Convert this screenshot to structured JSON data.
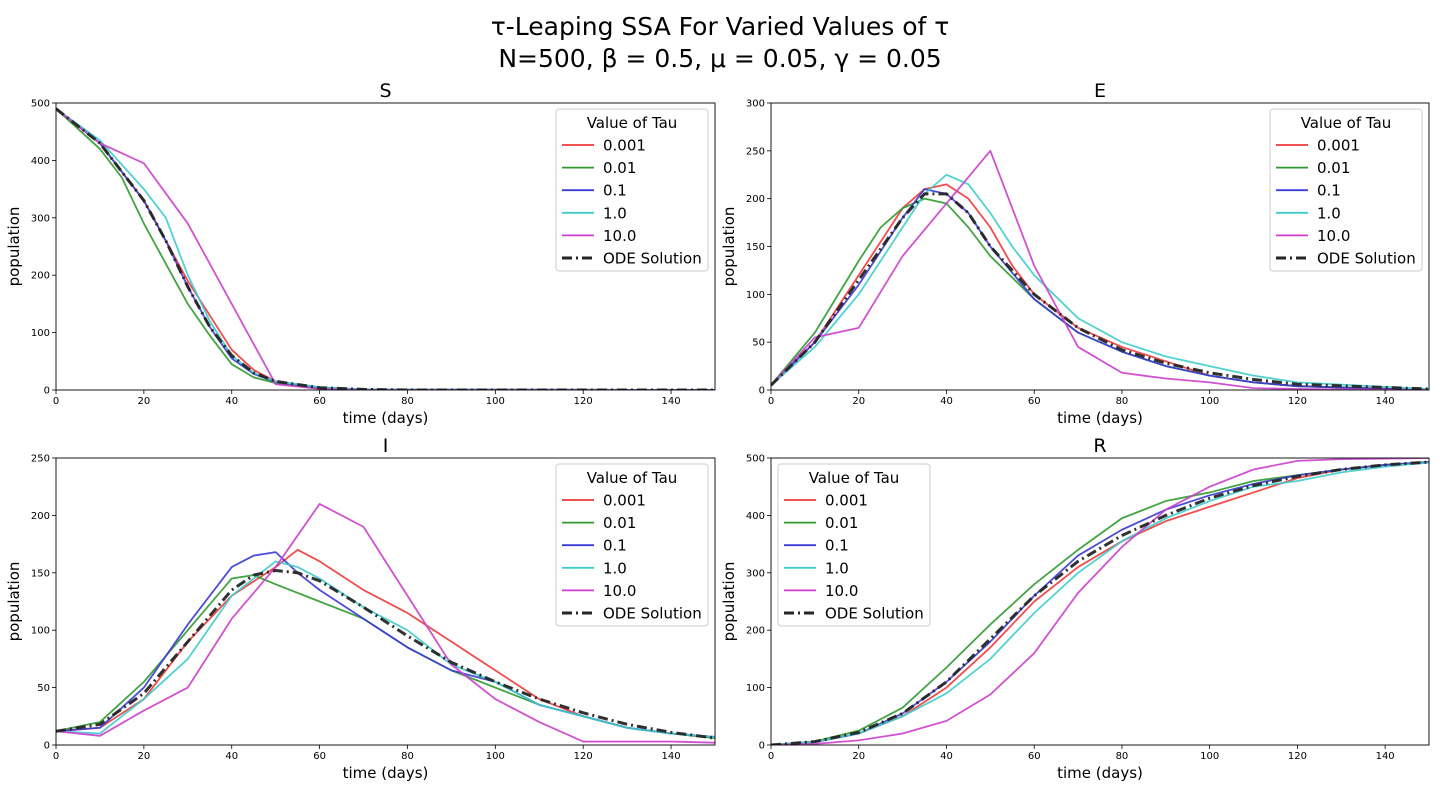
{
  "figure": {
    "title_line1": "τ-Leaping SSA For Varied Values of τ",
    "title_line2": "N=500, β = 0.5, μ = 0.05, γ = 0.05"
  },
  "colors": {
    "0.001": "#ee3a3a",
    "0.01": "#2e9a2e",
    "0.1": "#3a3ad6",
    "1.0": "#3ecccc",
    "10.0": "#cc3fcc",
    "ODE Solution": "#262626"
  },
  "chart_data": [
    {
      "type": "line",
      "title": "S",
      "xlabel": "time (days)",
      "ylabel": "population",
      "xlim": [
        0,
        150
      ],
      "ylim": [
        0,
        500
      ],
      "xticks": [
        0,
        20,
        40,
        60,
        80,
        100,
        120,
        140
      ],
      "yticks": [
        0,
        100,
        200,
        300,
        400,
        500
      ],
      "legend": {
        "title": "Value of Tau",
        "placement": "top-right"
      },
      "series": [
        {
          "name": "0.001",
          "x": [
            0,
            10,
            20,
            25,
            30,
            35,
            40,
            45,
            50,
            60,
            70,
            80,
            100,
            150
          ],
          "y": [
            490,
            430,
            330,
            260,
            190,
            130,
            70,
            35,
            15,
            4,
            1,
            0,
            0,
            0
          ]
        },
        {
          "name": "0.01",
          "x": [
            0,
            10,
            15,
            20,
            25,
            30,
            35,
            40,
            45,
            50,
            60,
            70,
            150
          ],
          "y": [
            490,
            420,
            370,
            290,
            220,
            150,
            95,
            45,
            22,
            12,
            3,
            1,
            0
          ]
        },
        {
          "name": "0.1",
          "x": [
            0,
            10,
            20,
            25,
            30,
            35,
            40,
            45,
            50,
            60,
            70,
            150
          ],
          "y": [
            490,
            430,
            330,
            260,
            180,
            110,
            55,
            28,
            14,
            4,
            1,
            0
          ]
        },
        {
          "name": "1.0",
          "x": [
            0,
            10,
            20,
            25,
            30,
            35,
            40,
            45,
            50,
            60,
            70,
            150
          ],
          "y": [
            490,
            435,
            350,
            300,
            200,
            120,
            60,
            30,
            15,
            5,
            1,
            0
          ]
        },
        {
          "name": "10.0",
          "x": [
            0,
            10,
            20,
            30,
            40,
            50,
            60,
            70,
            150
          ],
          "y": [
            490,
            430,
            395,
            290,
            150,
            10,
            2,
            0,
            0
          ]
        },
        {
          "name": "ODE Solution",
          "dash": true,
          "x": [
            0,
            10,
            20,
            25,
            30,
            35,
            40,
            45,
            50,
            60,
            70,
            80,
            150
          ],
          "y": [
            490,
            430,
            330,
            260,
            180,
            110,
            60,
            30,
            15,
            4,
            1,
            0,
            0
          ]
        }
      ]
    },
    {
      "type": "line",
      "title": "E",
      "xlabel": "time (days)",
      "ylabel": "population",
      "xlim": [
        0,
        150
      ],
      "ylim": [
        0,
        300
      ],
      "xticks": [
        0,
        20,
        40,
        60,
        80,
        100,
        120,
        140
      ],
      "yticks": [
        0,
        50,
        100,
        150,
        200,
        250,
        300
      ],
      "legend": {
        "title": "Value of Tau",
        "placement": "top-right"
      },
      "series": [
        {
          "name": "0.001",
          "x": [
            0,
            10,
            20,
            30,
            35,
            40,
            45,
            50,
            55,
            60,
            70,
            80,
            90,
            100,
            110,
            120,
            150
          ],
          "y": [
            5,
            50,
            120,
            190,
            210,
            215,
            200,
            170,
            130,
            100,
            65,
            45,
            30,
            15,
            8,
            4,
            0
          ]
        },
        {
          "name": "0.01",
          "x": [
            0,
            10,
            20,
            25,
            30,
            35,
            40,
            45,
            50,
            60,
            70,
            80,
            90,
            100,
            110,
            120,
            150
          ],
          "y": [
            5,
            60,
            135,
            170,
            190,
            200,
            195,
            170,
            140,
            95,
            60,
            40,
            25,
            15,
            8,
            4,
            0
          ]
        },
        {
          "name": "0.1",
          "x": [
            0,
            10,
            20,
            30,
            35,
            40,
            45,
            50,
            60,
            70,
            80,
            90,
            100,
            110,
            120,
            150
          ],
          "y": [
            5,
            50,
            110,
            180,
            210,
            205,
            185,
            150,
            95,
            60,
            40,
            25,
            15,
            8,
            4,
            0
          ]
        },
        {
          "name": "1.0",
          "x": [
            0,
            10,
            20,
            30,
            35,
            40,
            45,
            50,
            55,
            60,
            70,
            80,
            90,
            100,
            110,
            120,
            150
          ],
          "y": [
            5,
            45,
            100,
            170,
            205,
            225,
            215,
            185,
            150,
            120,
            75,
            50,
            35,
            25,
            15,
            8,
            1
          ]
        },
        {
          "name": "10.0",
          "x": [
            0,
            10,
            20,
            30,
            40,
            50,
            60,
            70,
            80,
            90,
            100,
            110,
            120,
            150
          ],
          "y": [
            5,
            55,
            65,
            140,
            195,
            250,
            130,
            45,
            18,
            12,
            8,
            2,
            1,
            0
          ]
        },
        {
          "name": "ODE Solution",
          "dash": true,
          "x": [
            0,
            10,
            20,
            30,
            35,
            40,
            45,
            50,
            60,
            70,
            80,
            90,
            100,
            110,
            120,
            150
          ],
          "y": [
            5,
            50,
            115,
            180,
            205,
            205,
            185,
            150,
            100,
            65,
            42,
            28,
            18,
            11,
            6,
            1
          ]
        }
      ]
    },
    {
      "type": "line",
      "title": "I",
      "xlabel": "time (days)",
      "ylabel": "population",
      "xlim": [
        0,
        150
      ],
      "ylim": [
        0,
        250
      ],
      "xticks": [
        0,
        20,
        40,
        60,
        80,
        100,
        120,
        140
      ],
      "yticks": [
        0,
        50,
        100,
        150,
        200,
        250
      ],
      "legend": {
        "title": "Value of Tau",
        "placement": "top-right"
      },
      "series": [
        {
          "name": "0.001",
          "x": [
            0,
            10,
            20,
            30,
            40,
            50,
            55,
            60,
            70,
            80,
            90,
            100,
            110,
            120,
            130,
            140,
            150
          ],
          "y": [
            12,
            15,
            40,
            90,
            130,
            155,
            170,
            160,
            135,
            115,
            90,
            65,
            40,
            25,
            15,
            10,
            7
          ]
        },
        {
          "name": "0.01",
          "x": [
            0,
            10,
            20,
            30,
            40,
            45,
            50,
            60,
            70,
            80,
            90,
            100,
            110,
            120,
            130,
            140,
            150
          ],
          "y": [
            12,
            20,
            55,
            100,
            145,
            148,
            140,
            125,
            110,
            85,
            65,
            50,
            35,
            25,
            15,
            10,
            6
          ]
        },
        {
          "name": "0.1",
          "x": [
            0,
            10,
            20,
            30,
            40,
            45,
            50,
            55,
            60,
            70,
            80,
            90,
            100,
            110,
            120,
            130,
            140,
            150
          ],
          "y": [
            12,
            15,
            50,
            105,
            155,
            165,
            168,
            150,
            135,
            110,
            85,
            65,
            55,
            35,
            25,
            15,
            10,
            7
          ]
        },
        {
          "name": "1.0",
          "x": [
            0,
            10,
            20,
            30,
            40,
            50,
            55,
            60,
            70,
            80,
            90,
            100,
            110,
            120,
            130,
            140,
            150
          ],
          "y": [
            12,
            10,
            40,
            75,
            130,
            160,
            155,
            145,
            120,
            100,
            70,
            55,
            35,
            25,
            15,
            10,
            7
          ]
        },
        {
          "name": "10.0",
          "x": [
            0,
            10,
            20,
            30,
            40,
            50,
            60,
            70,
            80,
            90,
            100,
            110,
            120,
            130,
            140,
            150
          ],
          "y": [
            12,
            8,
            30,
            50,
            110,
            155,
            210,
            190,
            130,
            70,
            40,
            20,
            3,
            3,
            3,
            2
          ]
        },
        {
          "name": "ODE Solution",
          "dash": true,
          "x": [
            0,
            10,
            20,
            30,
            40,
            45,
            50,
            55,
            60,
            70,
            80,
            90,
            100,
            110,
            120,
            130,
            140,
            150
          ],
          "y": [
            12,
            18,
            45,
            90,
            135,
            148,
            152,
            150,
            143,
            120,
            95,
            72,
            55,
            40,
            28,
            18,
            11,
            6
          ]
        }
      ]
    },
    {
      "type": "line",
      "title": "R",
      "xlabel": "time (days)",
      "ylabel": "population",
      "xlim": [
        0,
        150
      ],
      "ylim": [
        0,
        500
      ],
      "xticks": [
        0,
        20,
        40,
        60,
        80,
        100,
        120,
        140
      ],
      "yticks": [
        0,
        100,
        200,
        300,
        400,
        500
      ],
      "legend": {
        "title": "Value of Tau",
        "placement": "top-left"
      },
      "series": [
        {
          "name": "0.001",
          "x": [
            0,
            10,
            20,
            30,
            40,
            50,
            60,
            70,
            80,
            90,
            100,
            110,
            120,
            130,
            140,
            150
          ],
          "y": [
            0,
            5,
            20,
            50,
            100,
            170,
            250,
            310,
            355,
            390,
            415,
            440,
            465,
            480,
            488,
            493
          ]
        },
        {
          "name": "0.01",
          "x": [
            0,
            10,
            20,
            30,
            40,
            50,
            60,
            70,
            80,
            90,
            100,
            110,
            120,
            130,
            140,
            150
          ],
          "y": [
            0,
            6,
            25,
            65,
            135,
            210,
            280,
            340,
            395,
            425,
            440,
            460,
            470,
            480,
            488,
            493
          ]
        },
        {
          "name": "0.1",
          "x": [
            0,
            10,
            20,
            30,
            40,
            50,
            60,
            70,
            80,
            90,
            100,
            110,
            120,
            130,
            140,
            150
          ],
          "y": [
            0,
            5,
            20,
            55,
            110,
            180,
            260,
            330,
            375,
            410,
            435,
            455,
            470,
            480,
            488,
            493
          ]
        },
        {
          "name": "1.0",
          "x": [
            0,
            10,
            20,
            30,
            40,
            50,
            60,
            70,
            80,
            90,
            100,
            110,
            120,
            130,
            140,
            150
          ],
          "y": [
            0,
            5,
            20,
            50,
            90,
            150,
            230,
            300,
            355,
            395,
            425,
            450,
            460,
            475,
            485,
            492
          ]
        },
        {
          "name": "10.0",
          "x": [
            0,
            10,
            20,
            30,
            40,
            50,
            60,
            70,
            80,
            90,
            100,
            110,
            120,
            130,
            140,
            150
          ],
          "y": [
            0,
            2,
            8,
            20,
            42,
            88,
            160,
            265,
            345,
            410,
            450,
            480,
            495,
            498,
            499,
            500
          ]
        },
        {
          "name": "ODE Solution",
          "dash": true,
          "x": [
            0,
            10,
            20,
            30,
            40,
            50,
            60,
            70,
            80,
            90,
            100,
            110,
            120,
            130,
            140,
            150
          ],
          "y": [
            0,
            6,
            22,
            55,
            110,
            185,
            260,
            320,
            365,
            400,
            430,
            452,
            468,
            480,
            488,
            493
          ]
        }
      ]
    }
  ]
}
